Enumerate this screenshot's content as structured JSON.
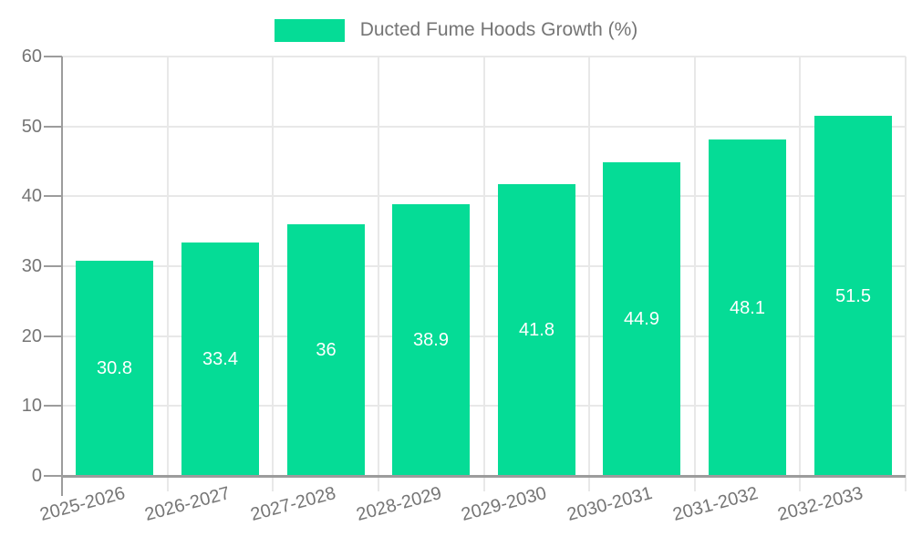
{
  "legend": {
    "label": "Ducted Fume Hoods Growth (%)"
  },
  "chart_data": {
    "type": "bar",
    "title": "",
    "series_name": "Ducted Fume Hoods Growth (%)",
    "categories": [
      "2025-2026",
      "2026-2027",
      "2027-2028",
      "2028-2029",
      "2029-2030",
      "2030-2031",
      "2031-2032",
      "2032-2033"
    ],
    "values": [
      30.8,
      33.4,
      36,
      38.9,
      41.8,
      44.9,
      48.1,
      51.5
    ],
    "value_labels": [
      "30.8",
      "33.4",
      "36",
      "38.9",
      "41.8",
      "44.9",
      "48.1",
      "51.5"
    ],
    "xlabel": "",
    "ylabel": "",
    "ylim": [
      0,
      60
    ],
    "yticks": [
      0,
      10,
      20,
      30,
      40,
      50,
      60
    ],
    "ytick_labels": [
      "0",
      "10",
      "20",
      "30",
      "40",
      "50",
      "60"
    ],
    "grid": true,
    "legend_position": "top-center",
    "bar_color": "#05dc96",
    "value_label_color": "#ffffff",
    "xtick_label_rotation_deg": -15
  },
  "colors": {
    "bar": "#05dc96",
    "grid": "#e8e8e8",
    "axis": "#9c9c9c",
    "text": "#757575",
    "value_text": "#ffffff",
    "background": "#ffffff"
  }
}
